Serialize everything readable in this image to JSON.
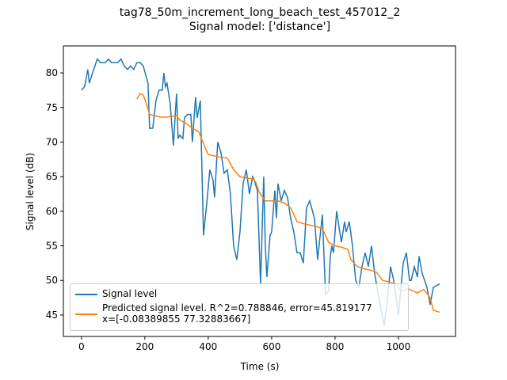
{
  "chart_data": {
    "type": "line",
    "title": "tag78_50m_increment_long_beach_test_457012_2",
    "subtitle": "Signal model: ['distance']",
    "x_label": "Time (s)",
    "y_label": "Signal level (dB)",
    "xlim": [
      -57,
      1180
    ],
    "ylim": [
      41.9,
      83.9
    ],
    "xticks": [
      0,
      200,
      400,
      600,
      800,
      1000
    ],
    "yticks": [
      45,
      50,
      55,
      60,
      65,
      70,
      75,
      80
    ],
    "legend": "lower left",
    "series": [
      {
        "name": "Signal level",
        "color": "#1f77b4",
        "x": [
          0,
          10,
          20,
          25,
          35,
          50,
          60,
          75,
          85,
          95,
          115,
          125,
          135,
          145,
          155,
          165,
          175,
          185,
          195,
          210,
          215,
          225,
          235,
          245,
          255,
          260,
          265,
          270,
          280,
          290,
          300,
          305,
          310,
          320,
          325,
          335,
          345,
          350,
          360,
          365,
          375,
          385,
          395,
          405,
          415,
          420,
          430,
          440,
          450,
          460,
          470,
          480,
          490,
          500,
          510,
          520,
          530,
          540,
          545,
          555,
          565,
          575,
          580,
          585,
          595,
          600,
          610,
          615,
          620,
          630,
          640,
          650,
          660,
          670,
          680,
          690,
          700,
          710,
          720,
          735,
          745,
          760,
          770,
          780,
          785,
          790,
          795,
          805,
          815,
          820,
          830,
          835,
          845,
          855,
          865,
          875,
          885,
          895,
          905,
          915,
          925,
          940,
          955,
          965,
          975,
          985,
          1000,
          1015,
          1025,
          1035,
          1040,
          1050,
          1060,
          1065,
          1075,
          1090,
          1100,
          1110,
          1130
        ],
        "values": [
          77.5,
          78,
          80.5,
          78.5,
          80,
          82,
          81.5,
          81.5,
          82,
          81.5,
          81.5,
          82,
          81,
          80.5,
          81,
          80.5,
          81.5,
          81.5,
          81,
          78.5,
          72,
          72,
          76,
          77.5,
          77.5,
          80,
          78,
          78.5,
          75.5,
          69.5,
          77,
          70.5,
          71,
          70.5,
          73.5,
          74,
          74,
          70,
          76.5,
          73.5,
          76,
          56.5,
          61,
          66,
          64.5,
          62,
          70,
          68.5,
          65.5,
          66,
          62.5,
          55,
          53,
          57,
          64,
          66,
          62.5,
          65,
          64.5,
          63,
          49.5,
          65,
          55,
          50.5,
          56.5,
          57,
          63,
          59,
          64,
          61.5,
          63,
          62,
          59,
          57,
          54,
          54,
          52.5,
          60.5,
          61.5,
          59,
          53,
          59.5,
          48,
          48.5,
          53.5,
          55,
          54,
          60,
          57,
          55.5,
          58.5,
          57,
          58.5,
          55,
          50,
          49,
          52,
          54,
          52,
          55,
          51,
          47,
          43.5,
          47,
          52,
          50,
          45,
          52.5,
          54,
          50,
          50,
          52,
          50.5,
          53.5,
          51,
          49,
          46.5,
          49,
          49.5
        ]
      },
      {
        "name": "Predicted signal level. R^2=0.788846, error=45.819177\nx=[-0.08389855 77.32883667]",
        "color": "#ff7f0e",
        "x": [
          175,
          185,
          195,
          205,
          215,
          230,
          250,
          270,
          280,
          300,
          310,
          330,
          350,
          370,
          390,
          400,
          420,
          440,
          460,
          480,
          500,
          520,
          540,
          550,
          560,
          580,
          600,
          620,
          640,
          660,
          680,
          700,
          720,
          740,
          760,
          780,
          800,
          820,
          840,
          850,
          870,
          890,
          910,
          930,
          950,
          970,
          990,
          1010,
          1030,
          1060,
          1080,
          1100,
          1110,
          1130
        ],
        "values": [
          76.2,
          77,
          76.8,
          75.5,
          74,
          73.8,
          73.6,
          73.6,
          73.7,
          73.8,
          73.2,
          72.7,
          72,
          71.5,
          69.2,
          68.2,
          68,
          67.8,
          67.7,
          66,
          65,
          64.8,
          64.7,
          64.2,
          62.8,
          61.5,
          61.5,
          61.5,
          61.2,
          60.5,
          58.5,
          58.2,
          58,
          57.8,
          57.5,
          55.5,
          55,
          54.8,
          54.5,
          53,
          52,
          51.7,
          51.5,
          51.2,
          50,
          49.8,
          49.5,
          48.5,
          48.8,
          48.2,
          48.7,
          47.5,
          45.7,
          45.4
        ]
      }
    ]
  }
}
